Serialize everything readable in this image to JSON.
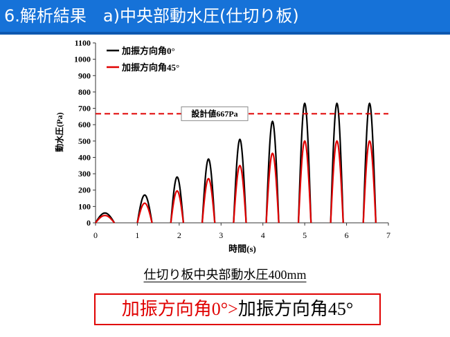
{
  "slide": {
    "title": "6.解析結果　a)中央部動水圧(仕切り板)",
    "caption": "仕切り板中央部動水圧400mm",
    "conclusion": {
      "left": "加振方向角0°>",
      "right": "加振方向角45°"
    }
  },
  "colors": {
    "title_bar": "#1672d8",
    "series_0deg": "#000000",
    "series_45deg": "#e00000",
    "design_line": "#e00000"
  },
  "chart_data": {
    "type": "line",
    "xlabel": "時間(s)",
    "ylabel": "動水圧(Pa)",
    "xlim": [
      0,
      7
    ],
    "ylim": [
      0,
      1100
    ],
    "xticks": [
      0,
      1,
      2,
      3,
      4,
      5,
      6,
      7
    ],
    "yticks": [
      0,
      100,
      200,
      300,
      400,
      500,
      600,
      700,
      800,
      900,
      1000,
      1100
    ],
    "grid": false,
    "legend_position": "top-left",
    "series": [
      {
        "name": "加振方向角0°",
        "color": "#000000",
        "pulses": [
          {
            "start": 0.0,
            "end": 0.45,
            "peak": 60
          },
          {
            "start": 1.0,
            "end": 1.35,
            "peak": 170
          },
          {
            "start": 1.8,
            "end": 2.1,
            "peak": 280
          },
          {
            "start": 2.55,
            "end": 2.85,
            "peak": 390
          },
          {
            "start": 3.3,
            "end": 3.6,
            "peak": 510
          },
          {
            "start": 4.08,
            "end": 4.38,
            "peak": 620
          },
          {
            "start": 4.85,
            "end": 5.15,
            "peak": 730
          },
          {
            "start": 5.62,
            "end": 5.92,
            "peak": 730
          },
          {
            "start": 6.4,
            "end": 6.7,
            "peak": 730
          }
        ]
      },
      {
        "name": "加振方向角45°",
        "color": "#e00000",
        "pulses": [
          {
            "start": 0.0,
            "end": 0.45,
            "peak": 45
          },
          {
            "start": 1.0,
            "end": 1.35,
            "peak": 120
          },
          {
            "start": 1.8,
            "end": 2.1,
            "peak": 195
          },
          {
            "start": 2.55,
            "end": 2.85,
            "peak": 270
          },
          {
            "start": 3.3,
            "end": 3.6,
            "peak": 350
          },
          {
            "start": 4.08,
            "end": 4.38,
            "peak": 425
          },
          {
            "start": 4.85,
            "end": 5.15,
            "peak": 500
          },
          {
            "start": 5.62,
            "end": 5.92,
            "peak": 500
          },
          {
            "start": 6.4,
            "end": 6.7,
            "peak": 500
          }
        ]
      }
    ],
    "reference_line": {
      "label": "設計値667Pa",
      "value": 667,
      "style": "dashed",
      "color": "#e00000"
    }
  }
}
